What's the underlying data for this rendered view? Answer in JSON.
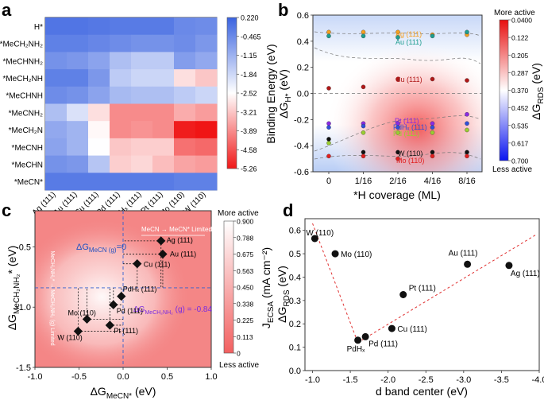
{
  "panel_labels": {
    "a": "a",
    "b": "b",
    "c": "c",
    "d": "d"
  },
  "chart_data": [
    {
      "type": "heatmap",
      "panel": "a",
      "rows": [
        "H*",
        "*MeCH₂NH₂",
        "*MeCHNH₂",
        "*MeCH₂NH",
        "*MeCHNH",
        "*MeCNH₂",
        "*MeCH₂N",
        "*MeCNH",
        "*MeCHN",
        "*MeCN*"
      ],
      "columns": [
        "Ag (111)",
        "Au (111)",
        "Cu (111)",
        "Pd (111)",
        "PdHₓ (111)",
        "Pt (111)",
        "Mo (110)",
        "W (110)"
      ],
      "values": [
        [
          -0.1,
          -0.1,
          -0.15,
          -0.2,
          -0.2,
          -0.2,
          -0.45,
          -0.5
        ],
        [
          -0.3,
          -0.3,
          -0.4,
          -0.5,
          -0.6,
          -0.6,
          -0.5,
          -0.7
        ],
        [
          -0.6,
          -0.7,
          -0.9,
          -1.4,
          -1.6,
          -1.6,
          -0.8,
          -1.0
        ],
        [
          -0.3,
          -0.3,
          -0.7,
          -1.6,
          -1.8,
          -1.8,
          -2.9,
          -3.2
        ],
        [
          -0.5,
          -0.6,
          -0.9,
          -1.3,
          -1.4,
          -1.4,
          -1.6,
          -1.8
        ],
        [
          -1.4,
          -2.0,
          -2.9,
          -3.9,
          -3.9,
          -3.9,
          -3.5,
          -3.7
        ],
        [
          -1.0,
          -1.2,
          -2.6,
          -3.9,
          -3.8,
          -3.9,
          -5.2,
          -5.3
        ],
        [
          -0.9,
          -1.2,
          -2.5,
          -3.2,
          -3.1,
          -3.1,
          -4.2,
          -4.3
        ],
        [
          -0.6,
          -0.7,
          -1.5,
          -3.1,
          -3.0,
          -3.3,
          -3.6,
          -3.7
        ],
        [
          -0.2,
          -0.2,
          -0.2,
          -0.2,
          -0.2,
          -0.2,
          -0.3,
          -0.3
        ]
      ],
      "colorbar": {
        "label": "Binding Energy (eV)",
        "ticks": [
          "0.220",
          "-0.465",
          "-1.15",
          "-1.84",
          "-2.52",
          "-3.21",
          "-3.89",
          "-4.58",
          "-5.26"
        ],
        "min": -5.26,
        "max": 0.22
      }
    },
    {
      "type": "scatter",
      "panel": "b",
      "xlabel": "*H coverage (ML)",
      "ylabel": "ΔG",
      "ylabel_sub": "H*",
      "ylabel_unit": " (eV)",
      "x_ticks": [
        "0",
        "1/16",
        "2/16",
        "4/16",
        "8/16"
      ],
      "y_ticks": [
        0.6,
        0.4,
        0.2,
        0.0,
        -0.2,
        -0.4,
        -0.6
      ],
      "ylim": [
        -0.6,
        0.6
      ],
      "series": [
        {
          "name": "Ag (111)",
          "color": "#f5a020",
          "y": [
            0.47,
            0.47,
            0.47,
            0.45,
            0.45
          ]
        },
        {
          "name": "Au (111)",
          "color": "#1f9e90",
          "y": [
            0.44,
            0.44,
            0.43,
            0.44,
            0.47
          ]
        },
        {
          "name": "Cu (111)",
          "color": "#b01818",
          "y": [
            0.04,
            0.05,
            0.11,
            0.11,
            0.1
          ]
        },
        {
          "name": "Pt (111)",
          "color": "#8a2be2",
          "y": [
            -0.23,
            -0.23,
            -0.23,
            -0.23,
            -0.16
          ]
        },
        {
          "name": "PdHₓ (111)",
          "color": "#3050d8",
          "y": [
            -0.26,
            -0.25,
            -0.26,
            -0.26,
            -0.23
          ]
        },
        {
          "name": "Pd (111)",
          "color": "#9acd32",
          "y": [
            -0.38,
            -0.3,
            -0.3,
            -0.3,
            -0.28
          ]
        },
        {
          "name": "W (110)",
          "color": "#111111",
          "y": [
            -0.35,
            -0.45,
            -0.45,
            -0.45,
            -0.45
          ]
        },
        {
          "name": "Mo (110)",
          "color": "#e02020",
          "y": [
            -0.48,
            -0.48,
            -0.5,
            -0.48,
            -0.48
          ]
        }
      ],
      "colorbar": {
        "label": "ΔG",
        "label_sub": "RDS",
        "label_unit": " (eV)",
        "ticks": [
          "0.0400",
          "0.122",
          "0.205",
          "0.287",
          "0.370",
          "0.452",
          "0.535",
          "0.617",
          "0.700"
        ],
        "top_label": "More active",
        "bottom_label": "Less active"
      }
    },
    {
      "type": "scatter",
      "panel": "c",
      "xlabel": "ΔG",
      "xlabel_sub": "MeCN*",
      "xlabel_unit": " (eV)",
      "ylabel": "ΔG",
      "ylabel_sub": "MeCH₂NH₂",
      "ylabel_unit": "* (eV)",
      "xlim": [
        -1.0,
        1.0
      ],
      "ylim": [
        -1.5,
        -0.2
      ],
      "x_ticks": [
        -1.0,
        -0.5,
        0.0,
        0.5,
        1.0
      ],
      "y_ticks": [
        -0.5,
        -1.0,
        -1.5
      ],
      "points": [
        {
          "label": "Ag (111)",
          "x": 0.43,
          "y": -0.45
        },
        {
          "label": "Au (111)",
          "x": 0.45,
          "y": -0.56
        },
        {
          "label": "Cu (111)",
          "x": 0.16,
          "y": -0.64
        },
        {
          "label": "PdHₓ (111)",
          "x": -0.02,
          "y": -0.91
        },
        {
          "label": "Pd (111)",
          "x": -0.11,
          "y": -0.98
        },
        {
          "label": "Mo (110)",
          "x": -0.41,
          "y": -1.1
        },
        {
          "label": "Pt (111)",
          "x": -0.15,
          "y": -1.15
        },
        {
          "label": "W (110)",
          "x": -0.51,
          "y": -1.2
        }
      ],
      "ref_lines": {
        "x0": 0.0,
        "y0": -0.84
      },
      "annotations": {
        "vline_prefix": "ΔG",
        "vline_sub": "MeCN (g)",
        "vline_suffix": "=0",
        "hline_prefix": "ΔG",
        "hline_sub": "MeCH₂NH₂",
        "hline_suffix": " (g) = -0.84",
        "top_arrow": "MeCN → MeCN* Limited",
        "left_arrow": "MeCH₂NH₂* → MeCH₂NH₂ (g) Limited"
      },
      "colorbar": {
        "label": "J",
        "label_sub": "ECSA",
        "label_unit": " (mA cm⁻²)",
        "ticks": [
          "0.900",
          "0.788",
          "0.675",
          "0.563",
          "0.450",
          "0.338",
          "0.225",
          "0.113",
          "0"
        ],
        "top_label": "More active",
        "bottom_label": "Less active"
      }
    },
    {
      "type": "scatter",
      "panel": "d",
      "xlabel": "d band center (eV)",
      "ylabel": "ΔG",
      "ylabel_sub": "RDS",
      "ylabel_unit": " (eV)",
      "xlim": [
        -0.9,
        -4.0
      ],
      "ylim": [
        0.0,
        0.65
      ],
      "x_ticks": [
        -1.0,
        -1.5,
        -2.0,
        -2.5,
        -3.0,
        -3.5,
        -4.0
      ],
      "y_ticks": [
        0.0,
        0.1,
        0.2,
        0.3,
        0.4,
        0.5,
        0.6
      ],
      "points": [
        {
          "label": "W (110)",
          "x": -1.03,
          "y": 0.565
        },
        {
          "label": "Mo (110)",
          "x": -1.3,
          "y": 0.5
        },
        {
          "label": "PdHₓ",
          "x": -1.6,
          "y": 0.13
        },
        {
          "label": "Pd (111)",
          "x": -1.7,
          "y": 0.145
        },
        {
          "label": "Cu (111)",
          "x": -2.05,
          "y": 0.18
        },
        {
          "label": "Pt (111)",
          "x": -2.2,
          "y": 0.325
        },
        {
          "label": "Au (111)",
          "x": -3.05,
          "y": 0.455
        },
        {
          "label": "Ag (111)",
          "x": -3.6,
          "y": 0.45
        }
      ],
      "trend_lines": [
        {
          "x": [
            -1.0,
            -1.6
          ],
          "y": [
            0.63,
            0.12
          ]
        },
        {
          "x": [
            -1.6,
            -3.95
          ],
          "y": [
            0.12,
            0.58
          ]
        }
      ]
    }
  ]
}
